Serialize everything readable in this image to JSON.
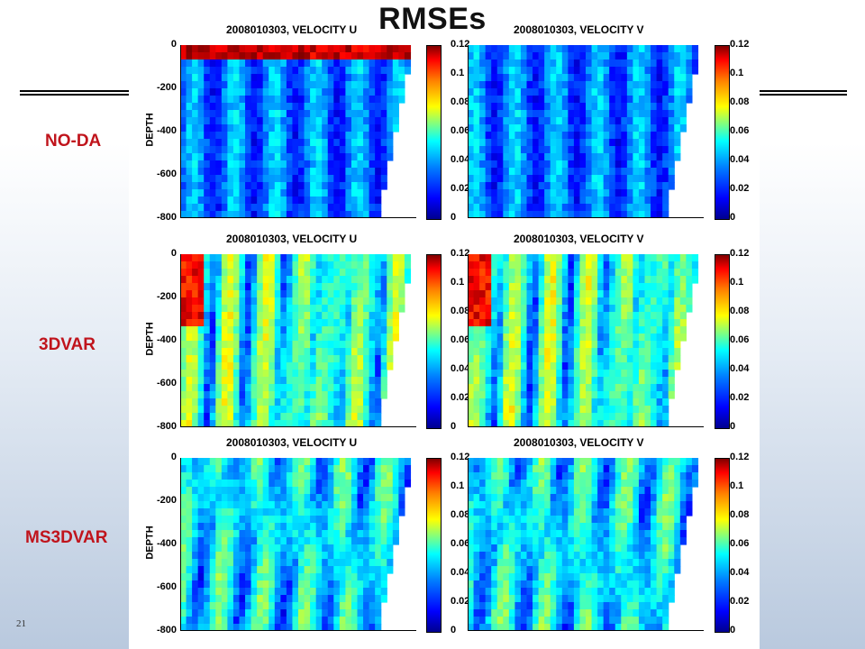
{
  "slide": {
    "title": "RMSEs",
    "page_number": "21"
  },
  "rows": [
    {
      "label": "NO-DA",
      "intensity": 0.25
    },
    {
      "label": "3DVAR",
      "intensity": 0.8
    },
    {
      "label": "MS3DVAR",
      "intensity": 0.35
    }
  ],
  "panel_titles": {
    "u": "2008010303, VELOCITY U",
    "v": "2008010303, VELOCITY V"
  },
  "y_axis": {
    "label": "DEPTH",
    "ticks": [
      "0",
      "-200",
      "-400",
      "-600",
      "-800"
    ],
    "range": [
      -800,
      0
    ]
  },
  "colorbar": {
    "ticks": [
      "0.12",
      "0.1",
      "0.08",
      "0.06",
      "0.04",
      "0.02",
      "0"
    ],
    "range": [
      0,
      0.12
    ],
    "colormap": "jet"
  },
  "colors": {
    "label_red": "#c0141c",
    "rule": "#000000"
  }
}
